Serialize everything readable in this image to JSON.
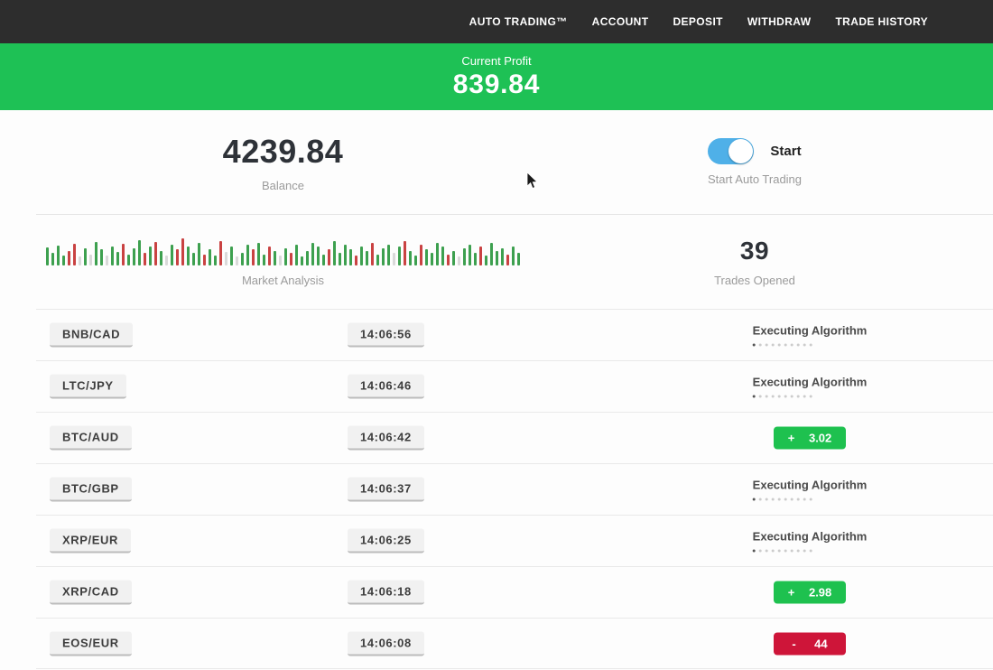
{
  "navbar": {
    "bg": "#2d2d2d",
    "items": [
      {
        "label": "AUTO TRADING™"
      },
      {
        "label": "ACCOUNT"
      },
      {
        "label": "DEPOSIT"
      },
      {
        "label": "WITHDRAW"
      },
      {
        "label": "TRADE HISTORY"
      }
    ]
  },
  "profit_banner": {
    "label": "Current Profit",
    "value": "839.84",
    "bg": "#1ec155"
  },
  "stats": {
    "balance": {
      "value": "4239.84",
      "label": "Balance"
    },
    "auto_trading": {
      "toggle_state": "on",
      "toggle_label": "Start",
      "label": "Start Auto Trading",
      "toggle_color": "#4fb0e8"
    },
    "market_analysis": {
      "label": "Market Analysis"
    },
    "trades_opened": {
      "value": "39",
      "label": "Trades Opened"
    }
  },
  "chart_data": {
    "type": "bar",
    "title": "Market Analysis",
    "description": "Decorative tick-style sparkline strip, no axes; bars as [height_px, color]",
    "colors": {
      "green": "#3da04f",
      "red": "#c94242",
      "pale": "#d9d9d9"
    },
    "bars": [
      [
        20,
        "green"
      ],
      [
        14,
        "green"
      ],
      [
        22,
        "green"
      ],
      [
        11,
        "green"
      ],
      [
        16,
        "red"
      ],
      [
        24,
        "red"
      ],
      [
        10,
        "pale"
      ],
      [
        19,
        "green"
      ],
      [
        12,
        "pale"
      ],
      [
        26,
        "green"
      ],
      [
        18,
        "green"
      ],
      [
        11,
        "pale"
      ],
      [
        21,
        "green"
      ],
      [
        15,
        "green"
      ],
      [
        24,
        "red"
      ],
      [
        12,
        "green"
      ],
      [
        19,
        "green"
      ],
      [
        28,
        "green"
      ],
      [
        14,
        "red"
      ],
      [
        21,
        "green"
      ],
      [
        26,
        "red"
      ],
      [
        16,
        "green"
      ],
      [
        11,
        "pale"
      ],
      [
        23,
        "green"
      ],
      [
        18,
        "red"
      ],
      [
        30,
        "red"
      ],
      [
        21,
        "green"
      ],
      [
        14,
        "green"
      ],
      [
        25,
        "green"
      ],
      [
        12,
        "red"
      ],
      [
        18,
        "green"
      ],
      [
        11,
        "green"
      ],
      [
        27,
        "red"
      ],
      [
        15,
        "pale"
      ],
      [
        21,
        "green"
      ],
      [
        10,
        "pale"
      ],
      [
        14,
        "green"
      ],
      [
        23,
        "green"
      ],
      [
        18,
        "red"
      ],
      [
        25,
        "green"
      ],
      [
        12,
        "green"
      ],
      [
        21,
        "red"
      ],
      [
        16,
        "green"
      ],
      [
        11,
        "pale"
      ],
      [
        19,
        "green"
      ],
      [
        14,
        "red"
      ],
      [
        23,
        "green"
      ],
      [
        10,
        "green"
      ],
      [
        16,
        "green"
      ],
      [
        25,
        "green"
      ],
      [
        21,
        "green"
      ],
      [
        12,
        "green"
      ],
      [
        18,
        "red"
      ],
      [
        27,
        "green"
      ],
      [
        14,
        "green"
      ],
      [
        23,
        "green"
      ],
      [
        18,
        "green"
      ],
      [
        11,
        "red"
      ],
      [
        21,
        "green"
      ],
      [
        16,
        "green"
      ],
      [
        25,
        "red"
      ],
      [
        12,
        "green"
      ],
      [
        19,
        "green"
      ],
      [
        23,
        "green"
      ],
      [
        14,
        "pale"
      ],
      [
        21,
        "green"
      ],
      [
        27,
        "red"
      ],
      [
        16,
        "green"
      ],
      [
        11,
        "green"
      ],
      [
        23,
        "red"
      ],
      [
        18,
        "green"
      ],
      [
        14,
        "green"
      ],
      [
        25,
        "green"
      ],
      [
        21,
        "green"
      ],
      [
        12,
        "red"
      ],
      [
        16,
        "green"
      ],
      [
        10,
        "pale"
      ],
      [
        19,
        "green"
      ],
      [
        23,
        "green"
      ],
      [
        14,
        "green"
      ],
      [
        21,
        "red"
      ],
      [
        11,
        "green"
      ],
      [
        25,
        "green"
      ],
      [
        16,
        "green"
      ],
      [
        19,
        "green"
      ],
      [
        12,
        "red"
      ],
      [
        21,
        "green"
      ],
      [
        14,
        "green"
      ]
    ]
  },
  "trades": {
    "executing_label": "Executing Algorithm",
    "progress_dots": {
      "count": 10,
      "active_index": 0
    },
    "rows": [
      {
        "pair": "BNB/CAD",
        "time": "14:06:56",
        "status": "executing"
      },
      {
        "pair": "LTC/JPY",
        "time": "14:06:46",
        "status": "executing"
      },
      {
        "pair": "BTC/AUD",
        "time": "14:06:42",
        "status": "result",
        "result": {
          "sign": "+",
          "value": "3.02",
          "color": "green"
        }
      },
      {
        "pair": "BTC/GBP",
        "time": "14:06:37",
        "status": "executing"
      },
      {
        "pair": "XRP/EUR",
        "time": "14:06:25",
        "status": "executing"
      },
      {
        "pair": "XRP/CAD",
        "time": "14:06:18",
        "status": "result",
        "result": {
          "sign": "+",
          "value": "2.98",
          "color": "green"
        }
      },
      {
        "pair": "EOS/EUR",
        "time": "14:06:08",
        "status": "result",
        "result": {
          "sign": "-",
          "value": "44",
          "color": "red"
        }
      }
    ]
  },
  "colors": {
    "navbar_bg": "#2d2d2d",
    "banner_green": "#1ec155",
    "badge_green": "#1ec14f",
    "badge_red": "#ce1539",
    "toggle_blue": "#4fb0e8"
  }
}
